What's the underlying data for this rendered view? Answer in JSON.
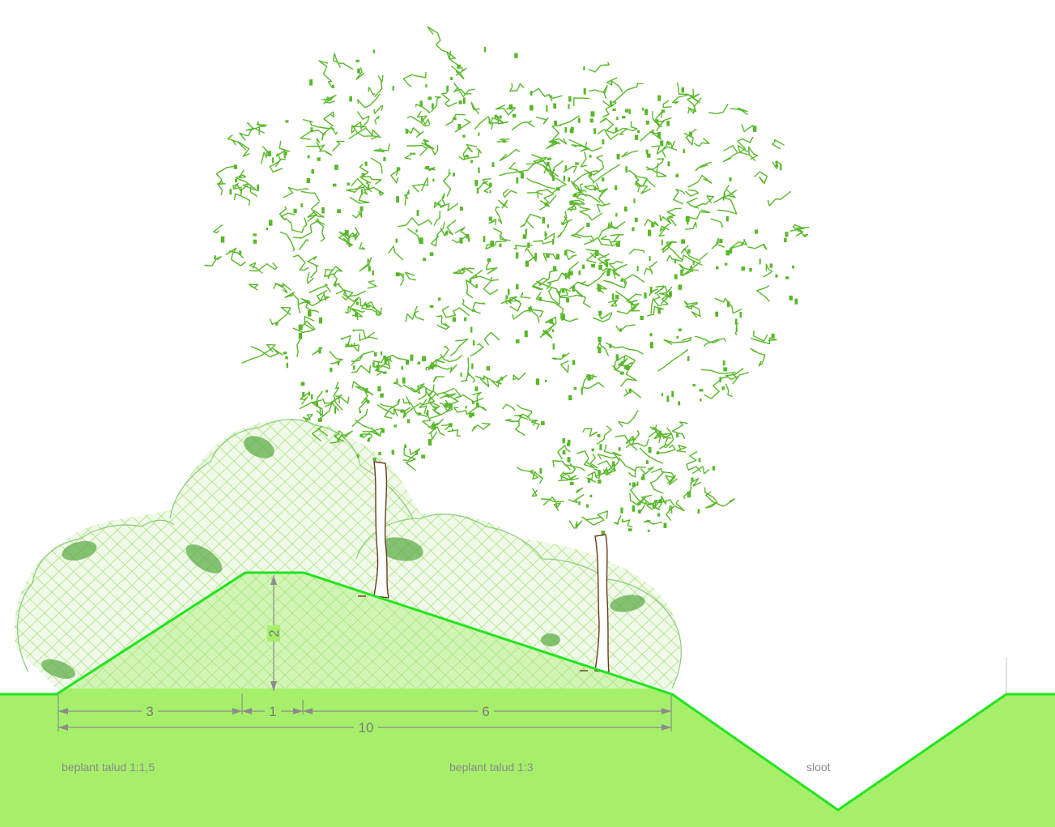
{
  "dimensions": {
    "height_label": "2",
    "left_slope_width": "3",
    "crest_width": "1",
    "right_slope_width": "6",
    "total_width": "10"
  },
  "labels": {
    "left_slope": "beplant talud 1:1,5",
    "right_slope": "beplant talud 1:3",
    "ditch": "sloot"
  },
  "colors": {
    "ground_fill": "#a6ef6a",
    "ground_line": "#22e41e",
    "foliage": "#58b82a",
    "shrub_hatch": "#a9e37d",
    "trunk": "#6b3a1e",
    "dimension": "#8c8c8c"
  }
}
